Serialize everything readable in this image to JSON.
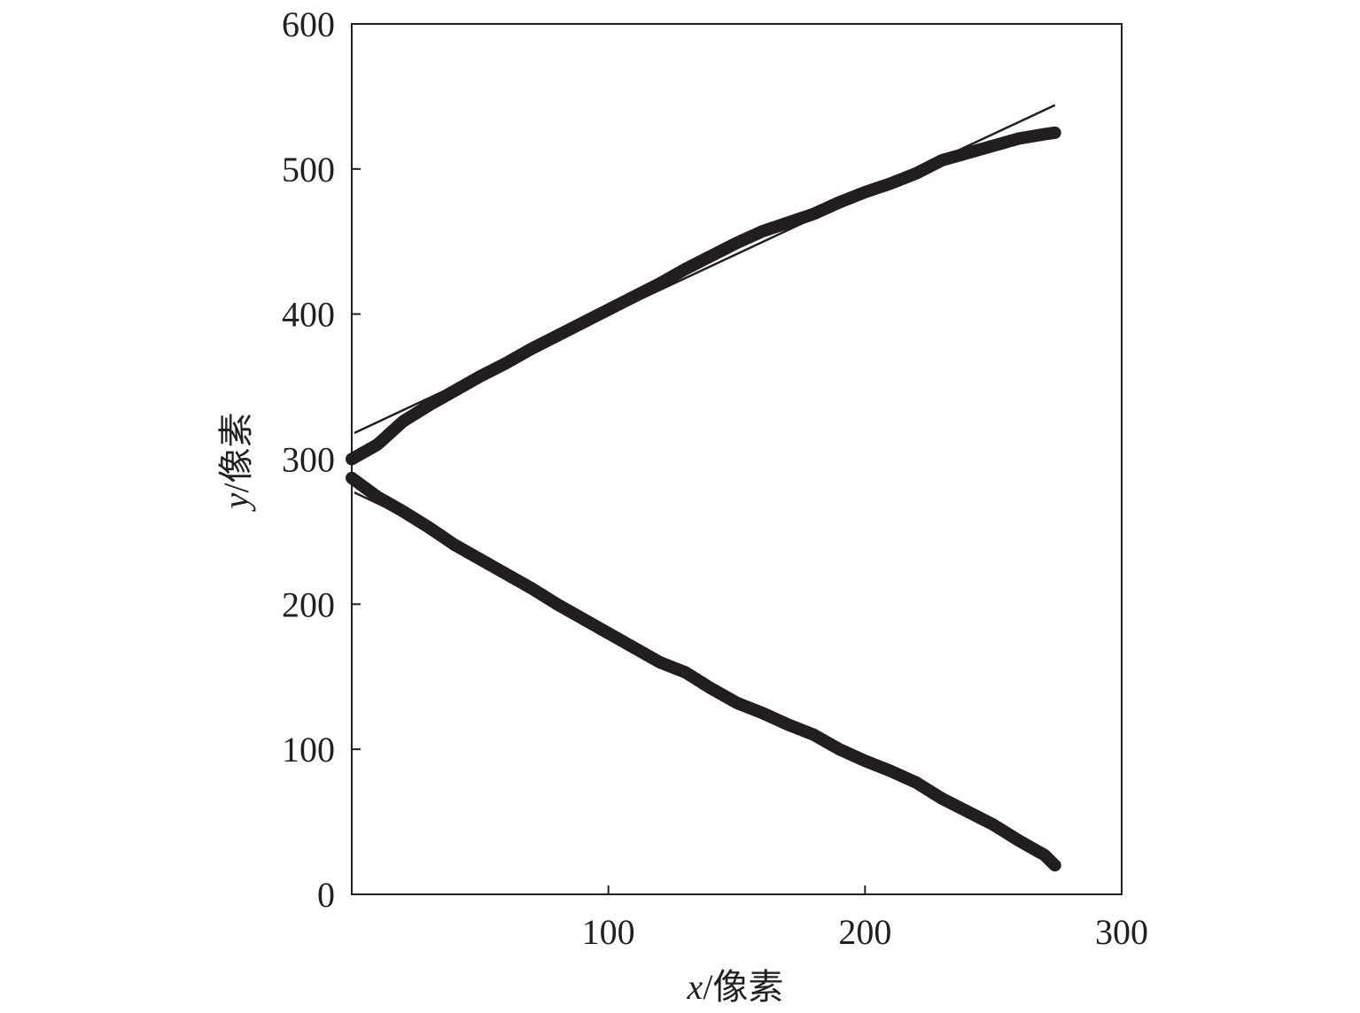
{
  "chart_data": {
    "type": "scatter",
    "title": "",
    "xlabel": {
      "var": "x",
      "unit": "/像素"
    },
    "ylabel": {
      "var": "y",
      "unit": "/像素"
    },
    "xlim": [
      0,
      300
    ],
    "ylim": [
      0,
      600
    ],
    "x_ticks": [
      100,
      200,
      300
    ],
    "y_ticks": [
      0,
      100,
      200,
      300,
      400,
      500,
      600
    ],
    "grid": false,
    "legend": "none",
    "colors": {
      "data": "#231f20",
      "axis": "#231f20"
    },
    "series": [
      {
        "style": "markers",
        "x": [
          0,
          10,
          20,
          30,
          40,
          50,
          60,
          70,
          80,
          90,
          100,
          110,
          120,
          130,
          140,
          150,
          160,
          170,
          180,
          190,
          200,
          210,
          220,
          230,
          240,
          250,
          260,
          270,
          274
        ],
        "y": [
          300,
          310,
          326,
          337,
          347,
          357,
          366,
          376,
          385,
          394,
          403,
          412,
          421,
          431,
          440,
          449,
          457,
          463,
          469,
          477,
          484,
          490,
          497,
          506,
          511,
          516,
          521,
          524,
          525
        ]
      },
      {
        "style": "markers",
        "x": [
          0,
          10,
          20,
          30,
          40,
          50,
          60,
          70,
          80,
          90,
          100,
          110,
          120,
          130,
          140,
          150,
          160,
          170,
          180,
          190,
          200,
          210,
          220,
          230,
          240,
          250,
          260,
          265,
          270,
          274
        ],
        "y": [
          287,
          274,
          264,
          253,
          241,
          231,
          221,
          211,
          200,
          190,
          180,
          170,
          160,
          153,
          142,
          132,
          125,
          117,
          110,
          100,
          92,
          85,
          77,
          66,
          57,
          48,
          37,
          32,
          27,
          20
        ]
      },
      {
        "style": "fit-line",
        "x": [
          1,
          274
        ],
        "y": [
          318,
          544
        ]
      },
      {
        "style": "fit-line",
        "x": [
          1,
          25
        ],
        "y": [
          277,
          257
        ]
      }
    ]
  }
}
